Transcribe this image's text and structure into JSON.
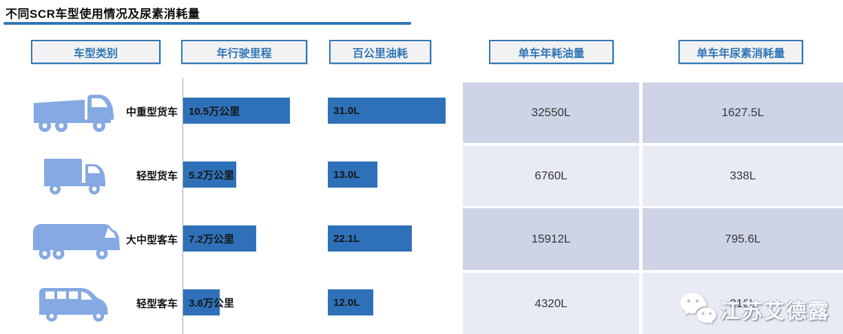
{
  "title": "不同SCR车型使用情况及尿素消耗量",
  "colors": {
    "accent": "#2E75B6",
    "bar_blue": "#2E71B8",
    "vehicle_icon_blue": "#85A9E2",
    "cell_dark": "#CED4E6",
    "cell_light": "#E9EBF4"
  },
  "headers": [
    {
      "label": "车型类别"
    },
    {
      "label": "年行驶里程"
    },
    {
      "label": "百公里油耗"
    },
    {
      "label": "单车年耗油量"
    },
    {
      "label": "单车年尿素消耗量"
    }
  ],
  "rows": [
    {
      "vehicle": "中重型货车",
      "icon": "heavy-truck-icon",
      "mileage_label": "10.5万公里",
      "fuel100_label": "31.0L",
      "annual_fuel": "32550L",
      "annual_urea": "1627.5L"
    },
    {
      "vehicle": "轻型货车",
      "icon": "light-truck-icon",
      "mileage_label": "5.2万公里",
      "fuel100_label": "13.0L",
      "annual_fuel": "6760L",
      "annual_urea": "338L"
    },
    {
      "vehicle": "大中型客车",
      "icon": "coach-bus-icon",
      "mileage_label": "7.2万公里",
      "fuel100_label": "22.1L",
      "annual_fuel": "15912L",
      "annual_urea": "795.6L"
    },
    {
      "vehicle": "轻型客车",
      "icon": "light-bus-icon",
      "mileage_label": "3.6万公里",
      "fuel100_label": "12.0L",
      "annual_fuel": "4320L",
      "annual_urea": "216L"
    }
  ],
  "chart_data": {
    "type": "bar",
    "orientation": "horizontal",
    "title": "不同SCR车型使用情况及尿素消耗量",
    "categories": [
      "中重型货车",
      "轻型货车",
      "大中型客车",
      "轻型客车"
    ],
    "series": [
      {
        "name": "年行驶里程",
        "unit": "万公里",
        "values": [
          10.5,
          5.2,
          7.2,
          3.6
        ]
      },
      {
        "name": "百公里油耗",
        "unit": "L",
        "values": [
          31.0,
          13.0,
          22.1,
          12.0
        ]
      },
      {
        "name": "单车年耗油量",
        "unit": "L",
        "values": [
          32550,
          6760,
          15912,
          4320
        ]
      },
      {
        "name": "单车年尿素消耗量",
        "unit": "L",
        "values": [
          1627.5,
          338,
          795.6,
          216
        ]
      }
    ],
    "legend": "none",
    "grid": false
  },
  "watermark": {
    "text": "江苏艾德露"
  }
}
